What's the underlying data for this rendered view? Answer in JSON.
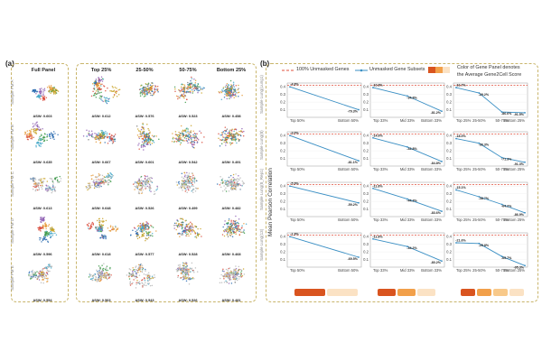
{
  "panel_a": {
    "tag": "(a)",
    "columns": [
      "Full Panel",
      "Top 25%",
      "25-50%",
      "50-75%",
      "Bottom 25%"
    ],
    "rows": [
      "Sample FM A",
      "Sample FM B",
      "Sample FM C",
      "Sample FM D",
      "Sample FM E"
    ],
    "asw": [
      [
        "ASW: 0.603",
        "ASW: 0.612",
        "ASW: 0.576",
        "ASW: 0.523",
        "ASW: 0.458"
      ],
      [
        "ASW: 0.635",
        "ASW: 0.667",
        "ASW: 0.601",
        "ASW: 0.542",
        "ASW: 0.491"
      ],
      [
        "ASW: 0.613",
        "ASW: 0.648",
        "ASW: 0.526",
        "ASW: 0.499",
        "ASW: 0.482"
      ],
      [
        "ASW: 0.596",
        "ASW: 0.618",
        "ASW: 0.577",
        "ASW: 0.528",
        "ASW: 0.468"
      ],
      [
        "ASW: 0.554",
        "ASW: 0.563",
        "ASW: 0.543",
        "ASW: 0.526",
        "ASW: 0.481"
      ]
    ],
    "cluster_colors": [
      "#2b6cb0",
      "#d94c3d",
      "#3d9a4a",
      "#8e5fb3",
      "#e59a3a",
      "#49a9c9",
      "#c9a227",
      "#7a7a7a"
    ]
  },
  "panel_b": {
    "tag": "(b)",
    "legend": {
      "reference": "100% Unmasked Genes",
      "subsets": "Unmasked Gene Subsets",
      "note_line1": "Color of Gene Panel denotes",
      "note_line2": "the Average Gene2Cell Score"
    },
    "y_title": "Mean Pearson Correlation",
    "row_labels": [
      "Sample Lung(Lung1)",
      "Sample Lung(8)",
      "Sample Lung(8_Rep1)",
      "Sample Lung(13)"
    ],
    "accent": {
      "reference": "#e0503c",
      "line": "#3a8fc4",
      "bar_dark": "#d9541f",
      "bar_mid": "#f2a04a",
      "bar_light": "#fbe2c4"
    }
  },
  "chart_data": {
    "type": "line",
    "ylim": [
      0.0,
      0.45
    ],
    "yticks": [
      "0.4",
      "0.3",
      "0.2",
      "0.1"
    ],
    "reference_y": 0.42,
    "columns": [
      {
        "x_labels": [
          "Top 50%",
          "Bottom 50%"
        ]
      },
      {
        "x_labels": [
          "Top 33%",
          "Mid 33%",
          "Bottom 33%"
        ]
      },
      {
        "x_labels": [
          "Top 25%",
          "25-50%",
          "50-75%",
          "Bottom 25%"
        ]
      }
    ],
    "panels": [
      [
        {
          "values": [
            0.4,
            0.1
          ],
          "labels": [
            "-4.8%",
            "-79.3%"
          ]
        },
        {
          "values": [
            0.39,
            0.28,
            0.08
          ],
          "labels": [
            "-10.8%",
            "-34.8%",
            "-81.2%"
          ]
        },
        {
          "values": [
            0.39,
            0.32,
            0.07,
            0.06
          ],
          "labels": [
            "-16.7%",
            "-29.2%",
            "-86.6%",
            "-91.5%"
          ]
        }
      ],
      [
        {
          "values": [
            0.4,
            0.07
          ],
          "labels": [
            "-3.0%",
            "-81.1%"
          ]
        },
        {
          "values": [
            0.37,
            0.25,
            0.06
          ],
          "labels": [
            "-14.6%",
            "-42.8%",
            "-84.8%"
          ]
        },
        {
          "values": [
            0.36,
            0.3,
            0.11,
            0.05
          ],
          "labels": [
            "-18.0%",
            "-30.3%",
            "-71.3%",
            "-91.3%"
          ]
        }
      ],
      [
        {
          "values": [
            0.4,
            0.18
          ],
          "labels": [
            "-5.9%",
            "-59.2%"
          ]
        },
        {
          "values": [
            0.37,
            0.23,
            0.07
          ],
          "labels": [
            "-11.8%",
            "-44.3%",
            "-83.6%"
          ]
        },
        {
          "values": [
            0.35,
            0.26,
            0.16,
            0.05
          ],
          "labels": [
            "-15.1%",
            "-38.7%",
            "-64.2%",
            "-86.9%"
          ]
        }
      ],
      [
        {
          "values": [
            0.4,
            0.13
          ],
          "labels": [
            "-1.9%",
            "-69.5%"
          ]
        },
        {
          "values": [
            0.37,
            0.27,
            0.08
          ],
          "labels": [
            "-11.8%",
            "-34.2%",
            "-80.2%"
          ]
        },
        {
          "values": [
            0.32,
            0.31,
            0.14,
            0.02
          ],
          "labels": [
            "-21.6%",
            "-25.8%",
            "-65.7%",
            "-95.3%"
          ]
        }
      ]
    ]
  }
}
